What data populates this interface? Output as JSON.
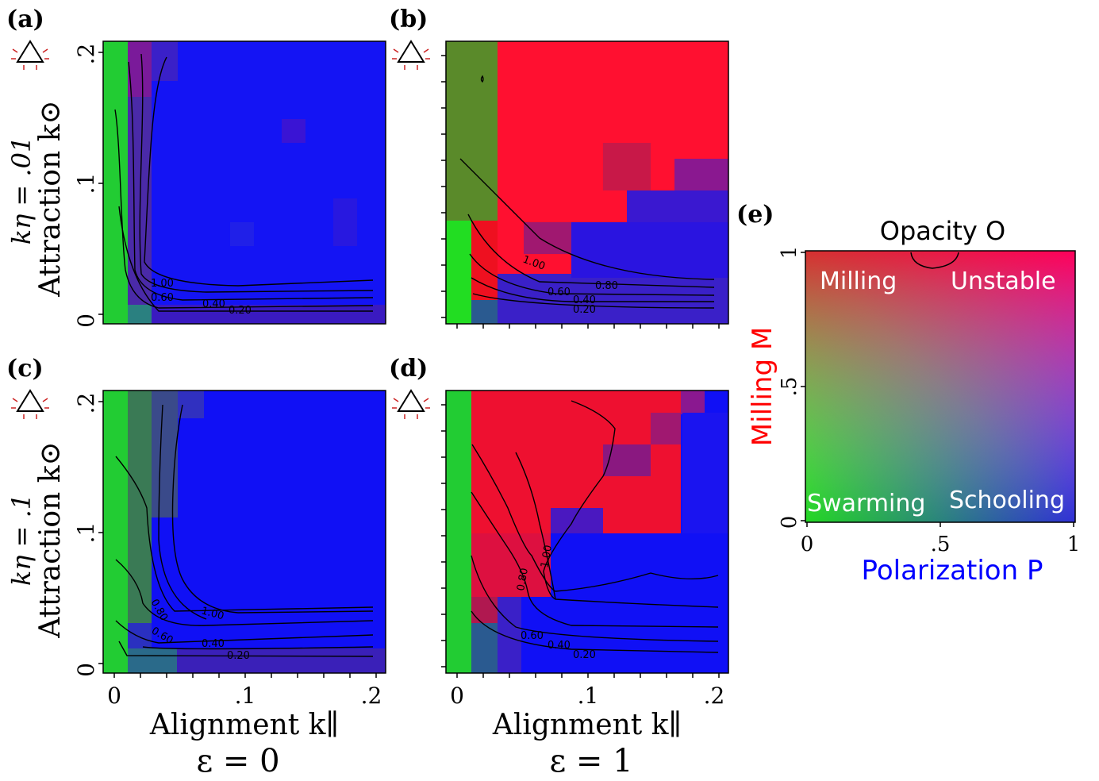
{
  "figure": {
    "panel_labels": [
      "(a)",
      "(b)",
      "(c)",
      "(d)",
      "(e)"
    ],
    "row_labels": [
      "kη = .01",
      "kη = .1"
    ],
    "column_labels": [
      "ε = 0",
      "ε = 1"
    ],
    "ylabel": "Attraction k⊙",
    "xlabel": "Alignment k∥",
    "xticks": [
      "0",
      ".1",
      ".2"
    ],
    "yticks": [
      "0",
      ".1",
      ".2"
    ],
    "legend": {
      "title": "Opacity O",
      "xlabel": "Polarization P",
      "ylabel": "Milling M",
      "ticks": [
        "0",
        ".5",
        "1"
      ],
      "regions": [
        "Milling",
        "Unstable",
        "Swarming",
        "Schooling"
      ],
      "colors": {
        "milling": "#ff0000",
        "polarization": "#0000ff",
        "swarming": "#22dd22",
        "unstable": "#ff00ff"
      }
    }
  },
  "chart_data": [
    {
      "type": "heatmap",
      "panel": "(a)",
      "title": "",
      "xlabel": "",
      "ylabel": "Attraction k⊙",
      "xlim": [
        0,
        0.2
      ],
      "ylim": [
        0,
        0.2
      ],
      "grid": false,
      "contour_levels": [
        "1.00",
        "0.80",
        "0.60",
        "0.40",
        "0.20"
      ],
      "regions": [
        {
          "x": [
            0,
            0.01
          ],
          "y": [
            0,
            0.2
          ],
          "phase": "swarming",
          "color": "#22cc33"
        },
        {
          "x": [
            0.01,
            0.03
          ],
          "y": [
            0.02,
            0.2
          ],
          "phase": "unstable",
          "color": "#5a1ea0"
        },
        {
          "x": [
            0.03,
            0.2
          ],
          "y": [
            0.02,
            0.2
          ],
          "phase": "schooling",
          "color": "#1515f5"
        },
        {
          "x": [
            0.01,
            0.03
          ],
          "y": [
            0,
            0.02
          ],
          "phase": "swarming-schooling",
          "color": "#2a7a80"
        }
      ]
    },
    {
      "type": "heatmap",
      "panel": "(b)",
      "title": "",
      "xlabel": "",
      "ylabel": "",
      "xlim": [
        0,
        0.2
      ],
      "ylim": [
        0,
        0.2
      ],
      "grid": false,
      "contour_levels": [
        "1.00",
        "0.80",
        "0.60",
        "0.40",
        "0.20"
      ],
      "regions": [
        {
          "x": [
            0,
            0.03
          ],
          "y": [
            0.07,
            0.2
          ],
          "phase": "swarming-milling",
          "color": "#5a8a2a"
        },
        {
          "x": [
            0,
            0.01
          ],
          "y": [
            0,
            0.07
          ],
          "phase": "swarming",
          "color": "#22dd22"
        },
        {
          "x": [
            0.01,
            0.2
          ],
          "y": [
            0.1,
            0.2
          ],
          "phase": "milling",
          "color": "#ff1030"
        },
        {
          "x": [
            0.05,
            0.2
          ],
          "y": [
            0.02,
            0.1
          ],
          "phase": "schooling",
          "color": "#1010f0"
        }
      ]
    },
    {
      "type": "heatmap",
      "panel": "(c)",
      "title": "",
      "xlabel": "Alignment k∥",
      "ylabel": "Attraction k⊙",
      "xlim": [
        0,
        0.2
      ],
      "ylim": [
        0,
        0.2
      ],
      "grid": false,
      "contour_levels": [
        "1.00",
        "0.80",
        "0.60",
        "0.40",
        "0.20"
      ],
      "regions": [
        {
          "x": [
            0,
            0.01
          ],
          "y": [
            0,
            0.2
          ],
          "phase": "swarming",
          "color": "#22cc33"
        },
        {
          "x": [
            0.01,
            0.03
          ],
          "y": [
            0.02,
            0.2
          ],
          "phase": "swarming-schooling",
          "color": "#3a6a55"
        },
        {
          "x": [
            0.03,
            0.2
          ],
          "y": [
            0.02,
            0.2
          ],
          "phase": "schooling",
          "color": "#1010f5"
        }
      ]
    },
    {
      "type": "heatmap",
      "panel": "(d)",
      "title": "",
      "xlabel": "Alignment k∥",
      "ylabel": "",
      "xlim": [
        0,
        0.2
      ],
      "ylim": [
        0,
        0.2
      ],
      "grid": false,
      "contour_levels": [
        "1.00",
        "0.80",
        "0.60",
        "0.40",
        "0.20"
      ],
      "regions": [
        {
          "x": [
            0,
            0.01
          ],
          "y": [
            0,
            0.2
          ],
          "phase": "swarming",
          "color": "#22cc33"
        },
        {
          "x": [
            0.01,
            0.12
          ],
          "y": [
            0.07,
            0.2
          ],
          "phase": "milling",
          "color": "#ee1030"
        },
        {
          "x": [
            0.05,
            0.2
          ],
          "y": [
            0.02,
            0.12
          ],
          "phase": "schooling",
          "color": "#1010f5"
        }
      ]
    }
  ]
}
